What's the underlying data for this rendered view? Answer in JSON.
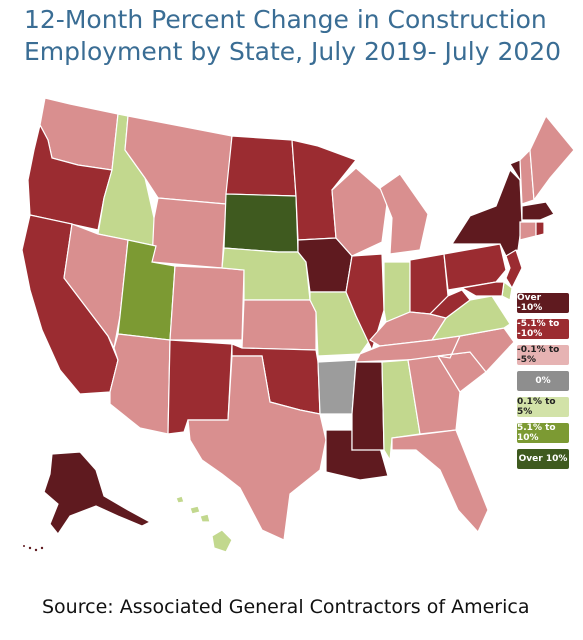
{
  "title_line1": "12-Month Percent Change in Construction",
  "title_line2": "Employment by State, July 2019- July 2020",
  "source": "Source: Associated General Contractors of America",
  "colors": {
    "over_neg10": "#5f1a1f",
    "neg5_to_neg10": "#9b2c31",
    "neg01_to_neg5": "#d98f8f",
    "zero": "#9c9c9c",
    "pos01_to_pos5": "#c2d88e",
    "pos5_to_pos10": "#7c9a33",
    "over_pos10": "#3f5a1f"
  },
  "legend": [
    {
      "label": "Over -10%",
      "color": "#5f1a1f",
      "text_color": "#ffffff"
    },
    {
      "label": "-5.1% to -10%",
      "color": "#9b2c31",
      "text_color": "#ffffff"
    },
    {
      "label": "-0.1% to -5%",
      "color": "#e6b3b3",
      "text_color": "#222222"
    },
    {
      "label": "0%",
      "color": "#8e8e8e",
      "text_color": "#ffffff"
    },
    {
      "label": "0.1% to 5%",
      "color": "#d2e2a8",
      "text_color": "#222222"
    },
    {
      "label": "5.1% to 10%",
      "color": "#7c9a33",
      "text_color": "#ffffff"
    },
    {
      "label": "Over 10%",
      "color": "#3f5a1f",
      "text_color": "#ffffff"
    }
  ],
  "states": [
    {
      "id": "WA",
      "cat": "neg01_to_neg5"
    },
    {
      "id": "OR",
      "cat": "neg5_to_neg10"
    },
    {
      "id": "CA",
      "cat": "neg5_to_neg10"
    },
    {
      "id": "ID",
      "cat": "pos01_to_pos5"
    },
    {
      "id": "NV",
      "cat": "neg01_to_neg5"
    },
    {
      "id": "MT",
      "cat": "neg01_to_neg5"
    },
    {
      "id": "WY",
      "cat": "neg01_to_neg5"
    },
    {
      "id": "UT",
      "cat": "pos5_to_pos10"
    },
    {
      "id": "AZ",
      "cat": "neg01_to_neg5"
    },
    {
      "id": "CO",
      "cat": "neg01_to_neg5"
    },
    {
      "id": "NM",
      "cat": "neg5_to_neg10"
    },
    {
      "id": "ND",
      "cat": "neg5_to_neg10"
    },
    {
      "id": "SD",
      "cat": "over_pos10"
    },
    {
      "id": "NE",
      "cat": "pos01_to_pos5"
    },
    {
      "id": "KS",
      "cat": "neg01_to_neg5"
    },
    {
      "id": "OK",
      "cat": "neg5_to_neg10"
    },
    {
      "id": "TX",
      "cat": "neg01_to_neg5"
    },
    {
      "id": "MN",
      "cat": "neg5_to_neg10"
    },
    {
      "id": "IA",
      "cat": "over_neg10"
    },
    {
      "id": "MO",
      "cat": "pos01_to_pos5"
    },
    {
      "id": "AR",
      "cat": "zero"
    },
    {
      "id": "LA",
      "cat": "over_neg10"
    },
    {
      "id": "WI",
      "cat": "neg01_to_neg5"
    },
    {
      "id": "IL",
      "cat": "neg5_to_neg10"
    },
    {
      "id": "MI",
      "cat": "neg01_to_neg5"
    },
    {
      "id": "IN",
      "cat": "pos01_to_pos5"
    },
    {
      "id": "OH",
      "cat": "neg5_to_neg10"
    },
    {
      "id": "KY",
      "cat": "neg01_to_neg5"
    },
    {
      "id": "TN",
      "cat": "neg01_to_neg5"
    },
    {
      "id": "MS",
      "cat": "over_neg10"
    },
    {
      "id": "AL",
      "cat": "pos01_to_pos5"
    },
    {
      "id": "GA",
      "cat": "neg01_to_neg5"
    },
    {
      "id": "FL",
      "cat": "neg01_to_neg5"
    },
    {
      "id": "SC",
      "cat": "neg01_to_neg5"
    },
    {
      "id": "NC",
      "cat": "neg01_to_neg5"
    },
    {
      "id": "VA",
      "cat": "pos01_to_pos5"
    },
    {
      "id": "WV",
      "cat": "neg5_to_neg10"
    },
    {
      "id": "PA",
      "cat": "neg5_to_neg10"
    },
    {
      "id": "NY",
      "cat": "over_neg10"
    },
    {
      "id": "VT",
      "cat": "over_neg10"
    },
    {
      "id": "NH",
      "cat": "neg01_to_neg5"
    },
    {
      "id": "ME",
      "cat": "neg01_to_neg5"
    },
    {
      "id": "MA",
      "cat": "over_neg10"
    },
    {
      "id": "CT",
      "cat": "neg01_to_neg5"
    },
    {
      "id": "RI",
      "cat": "neg5_to_neg10"
    },
    {
      "id": "NJ",
      "cat": "neg5_to_neg10"
    },
    {
      "id": "DE",
      "cat": "pos01_to_pos5"
    },
    {
      "id": "MD",
      "cat": "neg5_to_neg10"
    },
    {
      "id": "AK",
      "cat": "over_neg10"
    },
    {
      "id": "HI",
      "cat": "pos01_to_pos5"
    }
  ]
}
